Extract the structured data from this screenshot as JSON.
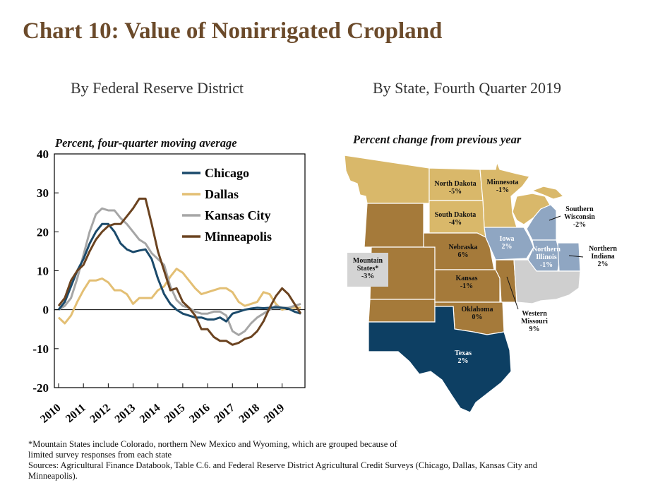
{
  "title": "Chart 10: Value of Nonirrigated Cropland",
  "left_panel": {
    "subtitle": "By Federal Reserve District",
    "unit_label": "Percent, four-quarter moving average"
  },
  "right_panel": {
    "subtitle": "By State, Fourth Quarter 2019",
    "unit_label": "Percent change from previous year"
  },
  "footnotes": [
    "*Mountain States include Colorado, northern New Mexico and Wyoming, which are grouped because of",
    "limited survey responses from each state",
    "Sources: Agricultural Finance Databook, Table C.6. and  Federal Reserve District Agricultural Credit Surveys (Chicago, Dallas, Kansas City and",
    "Minneapolis)."
  ],
  "colors": {
    "title": "#6b4a2a",
    "chicago": "#1b4a6b",
    "dallas": "#e3bf74",
    "kansas_city": "#a6a6a6",
    "minneapolis": "#6b4320",
    "map_tan": "#d9b86a",
    "map_brown": "#a57a3a",
    "map_lightblue": "#8fa6c2",
    "map_gray": "#cfcfcf",
    "map_navy": "#0d3f63"
  },
  "chart_data": [
    {
      "type": "line",
      "x": [
        "2010",
        "2010",
        "2010",
        "2010",
        "2011",
        "2011",
        "2011",
        "2011",
        "2012",
        "2012",
        "2012",
        "2012",
        "2013",
        "2013",
        "2013",
        "2013",
        "2014",
        "2014",
        "2014",
        "2014",
        "2015",
        "2015",
        "2015",
        "2015",
        "2016",
        "2016",
        "2016",
        "2016",
        "2017",
        "2017",
        "2017",
        "2017",
        "2018",
        "2018",
        "2018",
        "2018",
        "2019",
        "2019",
        "2019",
        "2019"
      ],
      "x_tick_labels": [
        "2010",
        "2011",
        "2012",
        "2013",
        "2014",
        "2015",
        "2016",
        "2017",
        "2018",
        "2019"
      ],
      "ylim": [
        -20,
        40
      ],
      "y_ticks": [
        -20,
        -10,
        0,
        10,
        20,
        30,
        40
      ],
      "legend_position": "top-right",
      "series": [
        {
          "name": "Chicago",
          "color": "#1b4a6b",
          "values": [
            0,
            2,
            6,
            10,
            13,
            17,
            20,
            22,
            22,
            20,
            17,
            15.5,
            14.8,
            15.2,
            15.5,
            13,
            8,
            4,
            1.5,
            0,
            -1,
            -1.5,
            -2,
            -2,
            -2.5,
            -2.5,
            -2,
            -3,
            -1,
            -0.5,
            0,
            0.3,
            0.5,
            0.4,
            0.5,
            0.6,
            0.5,
            0.3,
            -0.5,
            -1
          ]
        },
        {
          "name": "Dallas",
          "color": "#e3bf74",
          "values": [
            -2,
            -3.5,
            -1.5,
            2,
            5,
            7.5,
            7.5,
            8,
            7,
            5,
            5,
            4,
            1.5,
            3,
            3,
            3,
            5,
            6,
            8.5,
            10.5,
            9.5,
            7.5,
            5.5,
            4,
            4.5,
            5,
            5.5,
            5.5,
            4.5,
            2,
            1,
            1.5,
            2,
            4.5,
            4,
            1.5,
            0,
            0.5,
            0.5,
            0.5
          ]
        },
        {
          "name": "Kansas City",
          "color": "#a6a6a6",
          "values": [
            0,
            1,
            3,
            8,
            14,
            20,
            24.5,
            26,
            25.5,
            25.5,
            23.5,
            22,
            20,
            18,
            17,
            14.5,
            13,
            11.5,
            6,
            2.5,
            1,
            0.5,
            -0.5,
            -1,
            -1,
            -0.5,
            -0.5,
            -1.5,
            -5.5,
            -6.5,
            -5.5,
            -3.5,
            -2,
            -1,
            0,
            1,
            0.5,
            0.5,
            1,
            1.5
          ]
        },
        {
          "name": "Minneapolis",
          "color": "#6b4320",
          "values": [
            1,
            3,
            7.5,
            10,
            11.5,
            15,
            18,
            20,
            21.5,
            22,
            22,
            24,
            26,
            28.5,
            28.5,
            22,
            15,
            10,
            5,
            5.5,
            2,
            0.5,
            -1.5,
            -5,
            -5,
            -7,
            -8,
            -8,
            -9,
            -8.5,
            -7.5,
            -7,
            -5.5,
            -3,
            0.5,
            3.5,
            5.5,
            4,
            1.5,
            -1
          ]
        }
      ]
    },
    {
      "type": "map",
      "regions": [
        {
          "name": "North Dakota",
          "value": "-5%"
        },
        {
          "name": "Minnesota",
          "value": "-1%"
        },
        {
          "name": "South Dakota",
          "value": "-4%"
        },
        {
          "name": "Southern Wisconsin",
          "value": "-2%"
        },
        {
          "name": "Iowa",
          "value": "2%"
        },
        {
          "name": "Northern Illinois",
          "value": "-1%"
        },
        {
          "name": "Northern Indiana",
          "value": "2%"
        },
        {
          "name": "Nebraska",
          "value": "6%"
        },
        {
          "name": "Mountain States*",
          "value": "-3%"
        },
        {
          "name": "Kansas",
          "value": "-1%"
        },
        {
          "name": "Oklahoma",
          "value": "0%"
        },
        {
          "name": "Western Missouri",
          "value": "9%"
        },
        {
          "name": "Texas",
          "value": "2%"
        }
      ]
    }
  ]
}
